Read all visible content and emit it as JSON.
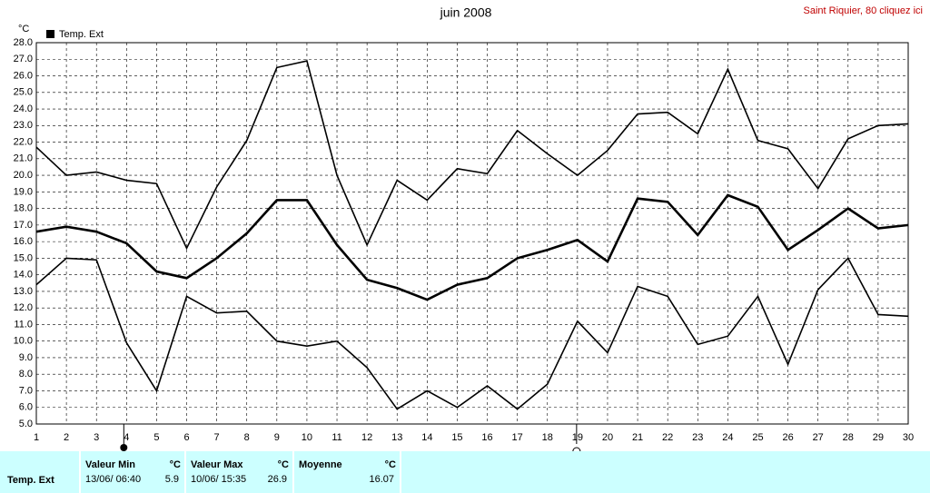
{
  "chart_data": {
    "type": "line",
    "title": "juin 2008",
    "y_label": "°C",
    "x": [
      1,
      2,
      3,
      4,
      5,
      6,
      7,
      8,
      9,
      10,
      11,
      12,
      13,
      14,
      15,
      16,
      17,
      18,
      19,
      20,
      21,
      22,
      23,
      24,
      25,
      26,
      27,
      28,
      29,
      30
    ],
    "xlim": [
      1,
      30
    ],
    "xticks": [
      1,
      2,
      3,
      4,
      5,
      6,
      7,
      8,
      9,
      10,
      11,
      12,
      13,
      14,
      15,
      16,
      17,
      18,
      19,
      20,
      21,
      22,
      23,
      24,
      25,
      26,
      27,
      28,
      29,
      30
    ],
    "ylim": [
      5,
      28
    ],
    "yticks": [
      {
        "value": 5,
        "label": "5.0"
      },
      {
        "value": 6,
        "label": "6.0"
      },
      {
        "value": 7,
        "label": "7.0"
      },
      {
        "value": 8,
        "label": "8.0"
      },
      {
        "value": 9,
        "label": "9.0"
      },
      {
        "value": 10,
        "label": "10.0"
      },
      {
        "value": 11,
        "label": "11.0"
      },
      {
        "value": 12,
        "label": "12.0"
      },
      {
        "value": 13,
        "label": "13.0"
      },
      {
        "value": 14,
        "label": "14.0"
      },
      {
        "value": 15,
        "label": "15.0"
      },
      {
        "value": 16,
        "label": "16.0"
      },
      {
        "value": 17,
        "label": "17.0"
      },
      {
        "value": 18,
        "label": "18.0"
      },
      {
        "value": 19,
        "label": "19.0"
      },
      {
        "value": 20,
        "label": "20.0"
      },
      {
        "value": 21,
        "label": "21.0"
      },
      {
        "value": 22,
        "label": "22.0"
      },
      {
        "value": 23,
        "label": "23.0"
      },
      {
        "value": 24,
        "label": "24.0"
      },
      {
        "value": 25,
        "label": "25.0"
      },
      {
        "value": 26,
        "label": "26.0"
      },
      {
        "value": 27,
        "label": "27.0"
      },
      {
        "value": 28,
        "label": "28.0"
      }
    ],
    "grid": true,
    "series": [
      {
        "color": "#000000",
        "values": [
          21.7,
          20.0,
          20.2,
          19.7,
          19.5,
          15.6,
          19.3,
          22.1,
          26.5,
          26.9,
          20.0,
          15.8,
          19.7,
          18.5,
          20.4,
          20.1,
          22.7,
          21.3,
          20.0,
          21.5,
          23.7,
          23.8,
          22.5,
          26.4,
          22.1,
          21.6,
          19.2,
          22.2,
          23.0,
          23.1
        ]
      },
      {
        "name": "Temp. Ext",
        "color": "#000000",
        "values": [
          16.6,
          16.9,
          16.6,
          15.9,
          14.2,
          13.8,
          15.0,
          16.5,
          18.5,
          18.5,
          15.8,
          13.7,
          13.2,
          12.5,
          13.4,
          13.8,
          15.0,
          15.5,
          16.1,
          14.8,
          18.6,
          18.4,
          16.4,
          18.8,
          18.1,
          15.5,
          16.7,
          18.0,
          16.8,
          17.0
        ]
      },
      {
        "color": "#000000",
        "values": [
          13.4,
          15.0,
          14.9,
          9.9,
          7.0,
          12.7,
          11.7,
          11.8,
          10.0,
          9.7,
          10.0,
          8.4,
          5.9,
          7.0,
          6.0,
          7.3,
          5.9,
          7.4,
          11.2,
          9.3,
          13.3,
          12.7,
          9.8,
          10.3,
          12.7,
          8.6,
          13.1,
          15.0,
          11.6,
          11.5
        ]
      }
    ]
  },
  "link": "Saint Riquier, 80 cliquez ici",
  "summary": {
    "row_label": "Temp. Ext",
    "columns": [
      {
        "header": "Valeur Min",
        "unit": "°C",
        "date": "13/06/ 06:40",
        "value": 5.9
      },
      {
        "header": "Valeur Max",
        "unit": "°C",
        "date": "10/06/ 15:35",
        "value": 26.9
      },
      {
        "header": "Moyenne",
        "unit": "°C",
        "value": 16.07
      }
    ]
  }
}
